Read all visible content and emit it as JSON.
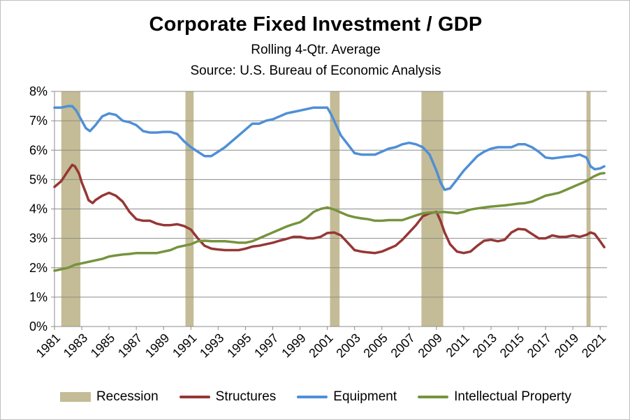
{
  "chart_data": {
    "type": "line",
    "title": "Corporate Fixed Investment / GDP",
    "subtitle_lines": [
      "Rolling 4-Qtr. Average",
      "Source:  U.S. Bureau of Economic Analysis"
    ],
    "xlabel": "",
    "ylabel": "",
    "xlim": [
      1981,
      2021.5
    ],
    "ylim": [
      0,
      8
    ],
    "x_ticks": [
      1981,
      1983,
      1985,
      1987,
      1989,
      1991,
      1993,
      1995,
      1997,
      1999,
      2001,
      2003,
      2005,
      2007,
      2009,
      2011,
      2013,
      2015,
      2017,
      2019,
      2021
    ],
    "y_ticks": [
      0,
      1,
      2,
      3,
      4,
      5,
      6,
      7,
      8
    ],
    "y_tick_labels": [
      "0%",
      "1%",
      "2%",
      "3%",
      "4%",
      "5%",
      "6%",
      "7%",
      "8%"
    ],
    "grid": {
      "horizontal": true,
      "vertical": false
    },
    "legend_position": "bottom",
    "recession_periods": [
      [
        1981.5,
        1982.9
      ],
      [
        1990.6,
        1991.2
      ],
      [
        2001.2,
        2001.9
      ],
      [
        2007.9,
        2009.5
      ],
      [
        2020.0,
        2020.3
      ]
    ],
    "recession_label": "Recession",
    "recession_color": "#c4bc96",
    "series": [
      {
        "name": "Structures",
        "color": "#953735",
        "x": [
          1981,
          1981.5,
          1982,
          1982.3,
          1982.5,
          1982.8,
          1983,
          1983.3,
          1983.5,
          1983.8,
          1984,
          1984.5,
          1985,
          1985.5,
          1986,
          1986.5,
          1987,
          1987.5,
          1988,
          1988.5,
          1989,
          1989.5,
          1990,
          1990.5,
          1991,
          1991.5,
          1992,
          1992.5,
          1993,
          1993.5,
          1994,
          1994.5,
          1995,
          1995.5,
          1996,
          1996.5,
          1997,
          1997.5,
          1998,
          1998.5,
          1999,
          1999.5,
          2000,
          2000.5,
          2001,
          2001.5,
          2002,
          2002.5,
          2003,
          2003.5,
          2004,
          2004.5,
          2005,
          2005.5,
          2006,
          2006.5,
          2007,
          2007.5,
          2008,
          2008.5,
          2009,
          2009.3,
          2009.6,
          2010,
          2010.5,
          2011,
          2011.5,
          2012,
          2012.5,
          2013,
          2013.5,
          2014,
          2014.5,
          2015,
          2015.5,
          2016,
          2016.5,
          2017,
          2017.5,
          2018,
          2018.5,
          2019,
          2019.5,
          2020,
          2020.3,
          2020.6,
          2021,
          2021.3
        ],
        "values": [
          4.75,
          4.95,
          5.3,
          5.5,
          5.45,
          5.2,
          4.9,
          4.55,
          4.3,
          4.2,
          4.3,
          4.45,
          4.55,
          4.45,
          4.25,
          3.9,
          3.65,
          3.6,
          3.6,
          3.5,
          3.45,
          3.45,
          3.48,
          3.42,
          3.3,
          3.0,
          2.75,
          2.65,
          2.62,
          2.6,
          2.6,
          2.6,
          2.65,
          2.72,
          2.75,
          2.8,
          2.85,
          2.92,
          2.98,
          3.05,
          3.05,
          3.0,
          3.0,
          3.05,
          3.18,
          3.2,
          3.1,
          2.85,
          2.6,
          2.55,
          2.52,
          2.5,
          2.55,
          2.65,
          2.75,
          2.95,
          3.2,
          3.45,
          3.75,
          3.85,
          3.9,
          3.6,
          3.2,
          2.8,
          2.55,
          2.5,
          2.55,
          2.75,
          2.92,
          2.95,
          2.9,
          2.95,
          3.2,
          3.32,
          3.3,
          3.15,
          3.0,
          3.0,
          3.1,
          3.05,
          3.05,
          3.1,
          3.05,
          3.12,
          3.2,
          3.15,
          2.9,
          2.7
        ]
      },
      {
        "name": "Equipment",
        "color": "#4f8fd6",
        "x": [
          1981,
          1981.5,
          1982,
          1982.3,
          1982.6,
          1983,
          1983.3,
          1983.6,
          1984,
          1984.5,
          1985,
          1985.5,
          1986,
          1986.5,
          1987,
          1987.5,
          1988,
          1988.5,
          1989,
          1989.5,
          1990,
          1990.5,
          1991,
          1991.5,
          1992,
          1992.5,
          1993,
          1993.5,
          1994,
          1994.5,
          1995,
          1995.5,
          1996,
          1996.5,
          1997,
          1997.5,
          1998,
          1998.5,
          1999,
          1999.5,
          2000,
          2000.5,
          2001,
          2001.3,
          2001.6,
          2002,
          2002.5,
          2003,
          2003.5,
          2004,
          2004.5,
          2005,
          2005.5,
          2006,
          2006.5,
          2007,
          2007.5,
          2008,
          2008.5,
          2009,
          2009.3,
          2009.6,
          2010,
          2010.5,
          2011,
          2011.5,
          2012,
          2012.5,
          2013,
          2013.5,
          2014,
          2014.5,
          2015,
          2015.5,
          2016,
          2016.5,
          2017,
          2017.5,
          2018,
          2018.5,
          2019,
          2019.5,
          2020,
          2020.3,
          2020.6,
          2021,
          2021.3
        ],
        "values": [
          7.45,
          7.45,
          7.5,
          7.5,
          7.35,
          7.0,
          6.75,
          6.65,
          6.85,
          7.15,
          7.25,
          7.2,
          7.0,
          6.95,
          6.85,
          6.65,
          6.6,
          6.6,
          6.62,
          6.62,
          6.55,
          6.3,
          6.1,
          5.95,
          5.8,
          5.8,
          5.95,
          6.1,
          6.3,
          6.5,
          6.7,
          6.9,
          6.9,
          7.0,
          7.05,
          7.15,
          7.25,
          7.3,
          7.35,
          7.4,
          7.45,
          7.45,
          7.45,
          7.2,
          6.9,
          6.5,
          6.2,
          5.9,
          5.85,
          5.85,
          5.85,
          5.95,
          6.05,
          6.1,
          6.2,
          6.25,
          6.2,
          6.1,
          5.85,
          5.3,
          4.9,
          4.65,
          4.7,
          5.0,
          5.3,
          5.55,
          5.8,
          5.95,
          6.05,
          6.1,
          6.1,
          6.1,
          6.2,
          6.2,
          6.1,
          5.95,
          5.75,
          5.72,
          5.75,
          5.78,
          5.8,
          5.85,
          5.75,
          5.45,
          5.35,
          5.38,
          5.45
        ]
      },
      {
        "name": "Intellectual Property",
        "color": "#77933c",
        "x": [
          1981,
          1981.5,
          1982,
          1982.5,
          1983,
          1983.5,
          1984,
          1984.5,
          1985,
          1985.5,
          1986,
          1986.5,
          1987,
          1987.5,
          1988,
          1988.5,
          1989,
          1989.5,
          1990,
          1990.5,
          1991,
          1991.5,
          1992,
          1992.5,
          1993,
          1993.5,
          1994,
          1994.5,
          1995,
          1995.5,
          1996,
          1996.5,
          1997,
          1997.5,
          1998,
          1998.5,
          1999,
          1999.5,
          2000,
          2000.5,
          2001,
          2001.5,
          2002,
          2002.5,
          2003,
          2003.5,
          2004,
          2004.5,
          2005,
          2005.5,
          2006,
          2006.5,
          2007,
          2007.5,
          2008,
          2008.5,
          2009,
          2009.5,
          2010,
          2010.5,
          2011,
          2011.5,
          2012,
          2012.5,
          2013,
          2013.5,
          2014,
          2014.5,
          2015,
          2015.5,
          2016,
          2016.5,
          2017,
          2017.5,
          2018,
          2018.5,
          2019,
          2019.5,
          2020,
          2020.5,
          2021,
          2021.3
        ],
        "values": [
          1.9,
          1.95,
          2.0,
          2.1,
          2.15,
          2.2,
          2.25,
          2.3,
          2.38,
          2.42,
          2.45,
          2.47,
          2.5,
          2.5,
          2.5,
          2.5,
          2.55,
          2.6,
          2.7,
          2.75,
          2.8,
          2.9,
          2.92,
          2.9,
          2.9,
          2.9,
          2.88,
          2.85,
          2.85,
          2.9,
          3.0,
          3.1,
          3.2,
          3.3,
          3.4,
          3.48,
          3.55,
          3.7,
          3.9,
          4.0,
          4.05,
          3.98,
          3.88,
          3.78,
          3.72,
          3.68,
          3.65,
          3.6,
          3.6,
          3.62,
          3.62,
          3.62,
          3.7,
          3.78,
          3.85,
          3.88,
          3.88,
          3.9,
          3.88,
          3.85,
          3.9,
          3.98,
          4.02,
          4.05,
          4.08,
          4.1,
          4.12,
          4.15,
          4.18,
          4.2,
          4.25,
          4.35,
          4.45,
          4.5,
          4.55,
          4.65,
          4.75,
          4.85,
          4.95,
          5.1,
          5.2,
          5.22
        ]
      }
    ]
  }
}
